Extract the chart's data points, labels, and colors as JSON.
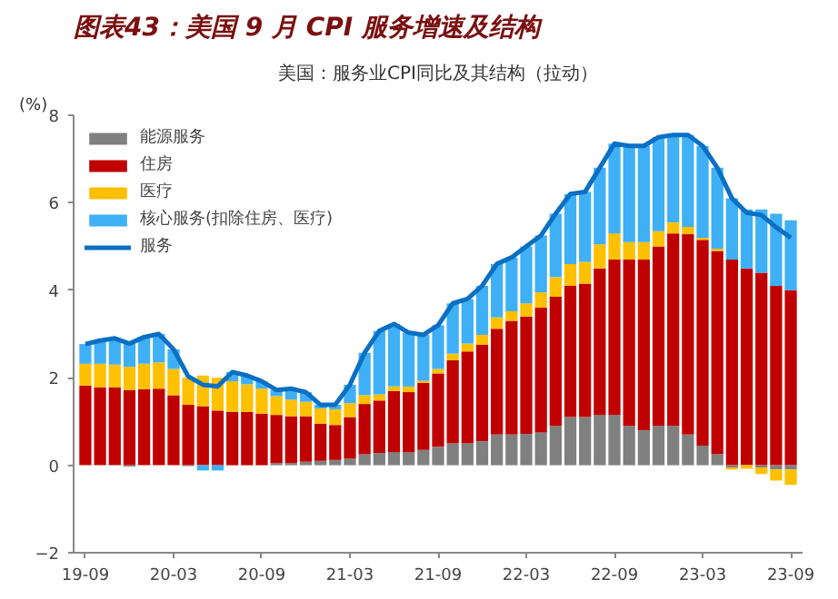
{
  "chart_data": {
    "type": "bar",
    "stacked": true,
    "title": "图表43：美国 9 月 CPI 服务增速及结构",
    "subtitle": "美国：服务业CPI同比及其结构（拉动）",
    "ylabel": "(%)",
    "categories": [
      "19-09",
      null,
      null,
      null,
      null,
      null,
      "20-03",
      null,
      null,
      null,
      null,
      null,
      "20-09",
      null,
      null,
      null,
      null,
      null,
      "21-03",
      null,
      null,
      null,
      null,
      null,
      "21-09",
      null,
      null,
      null,
      null,
      null,
      "22-03",
      null,
      null,
      null,
      null,
      null,
      "22-09",
      null,
      null,
      null,
      null,
      null,
      "23-03",
      null,
      null,
      null,
      null,
      null,
      "23-09"
    ],
    "ylim": [
      -2,
      8
    ],
    "yticks": [
      -2,
      0,
      2,
      4,
      6,
      8
    ],
    "grid": false,
    "legend": "top left",
    "series": [
      {
        "name": "能源服务",
        "color": "#808080",
        "values": [
          0,
          0,
          0,
          -0.03,
          0,
          0,
          0,
          -0.02,
          0,
          0,
          0,
          0,
          0,
          0.05,
          0.05,
          0.08,
          0.1,
          0.12,
          0.15,
          0.25,
          0.28,
          0.3,
          0.3,
          0.35,
          0.42,
          0.5,
          0.5,
          0.55,
          0.7,
          0.7,
          0.72,
          0.75,
          0.9,
          1.1,
          1.1,
          1.15,
          1.15,
          0.9,
          0.8,
          0.9,
          0.9,
          0.7,
          0.45,
          0.25,
          -0.05,
          null,
          -0.05,
          -0.1,
          -0.1
        ]
      },
      {
        "name": "住房",
        "color": "#c00000",
        "values": [
          1.82,
          1.78,
          1.78,
          1.72,
          1.74,
          1.75,
          1.6,
          1.38,
          1.35,
          1.25,
          1.22,
          1.22,
          1.18,
          1.1,
          1.07,
          1.04,
          0.85,
          0.8,
          0.95,
          1.15,
          1.2,
          1.4,
          1.37,
          1.53,
          1.68,
          1.9,
          2.1,
          2.2,
          2.42,
          2.6,
          2.68,
          2.85,
          2.95,
          3.0,
          3.05,
          3.35,
          3.55,
          3.8,
          3.9,
          4.1,
          4.4,
          4.58,
          4.7,
          4.65,
          4.7,
          4.5,
          4.4,
          4.1,
          4.0
        ]
      },
      {
        "name": "医疗",
        "color": "#ffc000",
        "values": [
          0.5,
          0.54,
          0.52,
          0.53,
          0.58,
          0.6,
          0.6,
          0.62,
          0.7,
          0.75,
          0.7,
          0.63,
          0.57,
          0.43,
          0.38,
          0.33,
          0.35,
          0.36,
          0.32,
          0.2,
          0.14,
          0.1,
          0.13,
          0.05,
          0.1,
          0.15,
          0.18,
          0.23,
          0.26,
          0.22,
          0.3,
          0.35,
          0.45,
          0.5,
          0.5,
          0.55,
          0.6,
          0.4,
          0.4,
          0.35,
          0.25,
          0.17,
          0.05,
          0.05,
          -0.05,
          -0.08,
          -0.15,
          -0.25,
          -0.35
        ]
      },
      {
        "name": "核心服务(扣除住房、医疗)",
        "color": "#3fb0f5",
        "values": [
          0.45,
          0.53,
          0.6,
          0.53,
          0.61,
          0.65,
          0.45,
          null,
          -0.12,
          -0.12,
          0.21,
          0.2,
          0.17,
          0.14,
          0.25,
          0.22,
          0.08,
          0.1,
          0.42,
          0.97,
          1.45,
          1.43,
          1.23,
          1.05,
          1.0,
          1.15,
          1.02,
          1.12,
          1.22,
          1.23,
          1.3,
          1.3,
          1.45,
          1.6,
          1.6,
          1.75,
          2.05,
          2.2,
          2.2,
          2.15,
          2.0,
          2.1,
          2.1,
          1.85,
          1.4,
          1.35,
          1.45,
          1.65,
          1.6
        ]
      },
      {
        "name": "服务",
        "type": "line",
        "color": "#0b6fc4",
        "values": [
          2.77,
          2.85,
          2.9,
          2.78,
          2.93,
          3.0,
          2.65,
          2.03,
          1.84,
          1.8,
          2.13,
          2.05,
          1.92,
          1.72,
          1.75,
          1.67,
          1.38,
          1.38,
          1.84,
          2.57,
          3.07,
          3.23,
          3.03,
          2.98,
          3.2,
          3.7,
          3.8,
          4.1,
          4.6,
          4.75,
          5.0,
          5.25,
          5.75,
          6.2,
          6.25,
          6.8,
          7.35,
          7.3,
          7.3,
          7.5,
          7.55,
          7.55,
          7.3,
          6.8,
          6.1,
          5.77,
          5.72,
          5.44,
          5.2
        ]
      }
    ]
  }
}
